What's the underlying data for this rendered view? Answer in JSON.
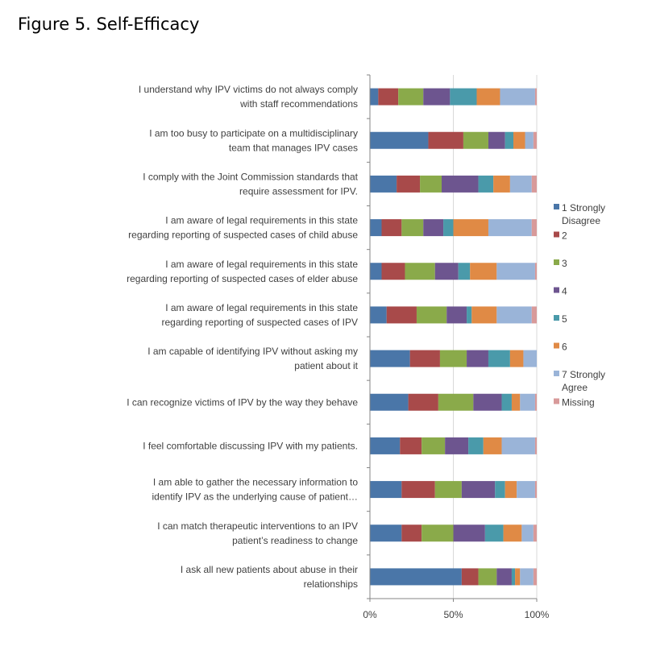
{
  "figure_title": "Figure 5. Self-Efficacy",
  "chart_data": {
    "type": "bar",
    "orientation": "horizontal",
    "stacked": "percent",
    "title": "Figure 5. Self-Efficacy",
    "xlabel": "",
    "ylabel": "",
    "xlim": [
      0,
      100
    ],
    "x_ticks": [
      "0%",
      "50%",
      "100%"
    ],
    "legend_position": "right",
    "categories": [
      [
        "I understand why IPV victims do not always comply",
        "with staff recommendations"
      ],
      [
        "I am too busy to participate on a multidisciplinary",
        "team that manages IPV cases"
      ],
      [
        "I comply with the Joint Commission standards that",
        "require assessment for IPV."
      ],
      [
        "I am aware of legal requirements in this state",
        "regarding reporting of suspected cases of child abuse"
      ],
      [
        "I am aware of legal requirements in this state",
        "regarding reporting of suspected cases of elder abuse"
      ],
      [
        "I am aware of legal requirements in this state",
        "regarding reporting of suspected cases of IPV"
      ],
      [
        "I am capable of identifying IPV without asking my",
        "patient about it"
      ],
      [
        "I can recognize victims of IPV by the way they behave"
      ],
      [
        "I feel comfortable discussing IPV with my patients."
      ],
      [
        "I am able to gather the necessary information to",
        "identify IPV as the underlying cause of patient…"
      ],
      [
        "I can match therapeutic interventions to an IPV",
        "patient’s readiness to change"
      ],
      [
        "I ask all new patients about abuse in their",
        "relationships"
      ]
    ],
    "series": [
      {
        "name": "1 Strongly Disagree",
        "legend_lines": [
          "1 Strongly",
          "Disagree"
        ],
        "color": "#4a76a8",
        "values": [
          5,
          35,
          16,
          7,
          7,
          10,
          24,
          23,
          18,
          19,
          19,
          55
        ]
      },
      {
        "name": "2",
        "legend_lines": [
          "2"
        ],
        "color": "#a84a4a",
        "values": [
          12,
          21,
          14,
          12,
          14,
          18,
          18,
          18,
          13,
          20,
          12,
          10
        ]
      },
      {
        "name": "3",
        "legend_lines": [
          "3"
        ],
        "color": "#8aaa4a",
        "values": [
          15,
          15,
          13,
          13,
          18,
          18,
          16,
          21,
          14,
          16,
          19,
          11
        ]
      },
      {
        "name": "4",
        "legend_lines": [
          "4"
        ],
        "color": "#6d558f",
        "values": [
          16,
          10,
          22,
          12,
          14,
          12,
          13,
          17,
          14,
          20,
          19,
          9
        ]
      },
      {
        "name": "5",
        "legend_lines": [
          "5"
        ],
        "color": "#4a9aaa",
        "values": [
          16,
          5,
          9,
          6,
          7,
          3,
          13,
          6,
          9,
          6,
          11,
          2
        ]
      },
      {
        "name": "6",
        "legend_lines": [
          "6"
        ],
        "color": "#e08a45",
        "values": [
          14,
          7,
          10,
          21,
          16,
          15,
          8,
          5,
          11,
          7,
          11,
          3
        ]
      },
      {
        "name": "7 Strongly Agree",
        "legend_lines": [
          "7 Strongly",
          "Agree"
        ],
        "color": "#9ab4d8",
        "values": [
          21,
          5,
          13,
          26,
          23,
          21,
          8,
          9,
          20,
          11,
          7,
          8
        ]
      },
      {
        "name": "Missing",
        "legend_lines": [
          "Missing"
        ],
        "color": "#d89a9a",
        "values": [
          1,
          2,
          3,
          3,
          1,
          3,
          0,
          1,
          1,
          1,
          2,
          2
        ]
      }
    ]
  }
}
